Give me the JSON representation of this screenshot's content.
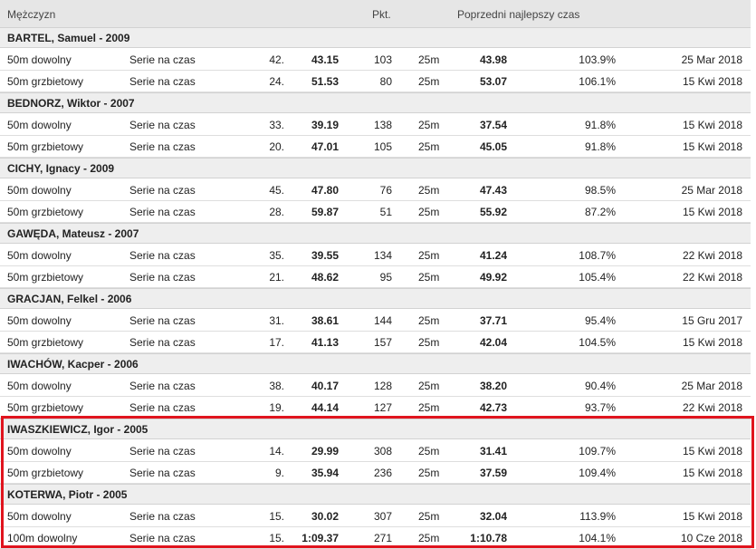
{
  "header": {
    "gender": "Mężczyzn",
    "points": "Pkt.",
    "previous_best": "Poprzedni najlepszy czas"
  },
  "athletes": [
    {
      "name": "BARTEL, Samuel - 2009",
      "results": [
        {
          "event": "50m dowolny",
          "round": "Serie na czas",
          "place": "42.",
          "time": "43.15",
          "points": "103",
          "course": "25m",
          "prev_time": "43.98",
          "percent": "103.9%",
          "date": "25 Mar 2018"
        },
        {
          "event": "50m grzbietowy",
          "round": "Serie na czas",
          "place": "24.",
          "time": "51.53",
          "points": "80",
          "course": "25m",
          "prev_time": "53.07",
          "percent": "106.1%",
          "date": "15 Kwi 2018"
        }
      ]
    },
    {
      "name": "BEDNORZ, Wiktor - 2007",
      "results": [
        {
          "event": "50m dowolny",
          "round": "Serie na czas",
          "place": "33.",
          "time": "39.19",
          "points": "138",
          "course": "25m",
          "prev_time": "37.54",
          "percent": "91.8%",
          "date": "15 Kwi 2018"
        },
        {
          "event": "50m grzbietowy",
          "round": "Serie na czas",
          "place": "20.",
          "time": "47.01",
          "points": "105",
          "course": "25m",
          "prev_time": "45.05",
          "percent": "91.8%",
          "date": "15 Kwi 2018"
        }
      ]
    },
    {
      "name": "CICHY, Ignacy - 2009",
      "results": [
        {
          "event": "50m dowolny",
          "round": "Serie na czas",
          "place": "45.",
          "time": "47.80",
          "points": "76",
          "course": "25m",
          "prev_time": "47.43",
          "percent": "98.5%",
          "date": "25 Mar 2018"
        },
        {
          "event": "50m grzbietowy",
          "round": "Serie na czas",
          "place": "28.",
          "time": "59.87",
          "points": "51",
          "course": "25m",
          "prev_time": "55.92",
          "percent": "87.2%",
          "date": "15 Kwi 2018"
        }
      ]
    },
    {
      "name": "GAWĘDA, Mateusz - 2007",
      "results": [
        {
          "event": "50m dowolny",
          "round": "Serie na czas",
          "place": "35.",
          "time": "39.55",
          "points": "134",
          "course": "25m",
          "prev_time": "41.24",
          "percent": "108.7%",
          "date": "22 Kwi 2018"
        },
        {
          "event": "50m grzbietowy",
          "round": "Serie na czas",
          "place": "21.",
          "time": "48.62",
          "points": "95",
          "course": "25m",
          "prev_time": "49.92",
          "percent": "105.4%",
          "date": "22 Kwi 2018"
        }
      ]
    },
    {
      "name": "GRACJAN, Felkel - 2006",
      "results": [
        {
          "event": "50m dowolny",
          "round": "Serie na czas",
          "place": "31.",
          "time": "38.61",
          "points": "144",
          "course": "25m",
          "prev_time": "37.71",
          "percent": "95.4%",
          "date": "15 Gru 2017"
        },
        {
          "event": "50m grzbietowy",
          "round": "Serie na czas",
          "place": "17.",
          "time": "41.13",
          "points": "157",
          "course": "25m",
          "prev_time": "42.04",
          "percent": "104.5%",
          "date": "15 Kwi 2018"
        }
      ]
    },
    {
      "name": "IWACHÓW, Kacper - 2006",
      "results": [
        {
          "event": "50m dowolny",
          "round": "Serie na czas",
          "place": "38.",
          "time": "40.17",
          "points": "128",
          "course": "25m",
          "prev_time": "38.20",
          "percent": "90.4%",
          "date": "25 Mar 2018"
        },
        {
          "event": "50m grzbietowy",
          "round": "Serie na czas",
          "place": "19.",
          "time": "44.14",
          "points": "127",
          "course": "25m",
          "prev_time": "42.73",
          "percent": "93.7%",
          "date": "22 Kwi 2018"
        }
      ]
    },
    {
      "name": "IWASZKIEWICZ, Igor - 2005",
      "results": [
        {
          "event": "50m dowolny",
          "round": "Serie na czas",
          "place": "14.",
          "time": "29.99",
          "points": "308",
          "course": "25m",
          "prev_time": "31.41",
          "percent": "109.7%",
          "date": "15 Kwi 2018"
        },
        {
          "event": "50m grzbietowy",
          "round": "Serie na czas",
          "place": "9.",
          "time": "35.94",
          "points": "236",
          "course": "25m",
          "prev_time": "37.59",
          "percent": "109.4%",
          "date": "15 Kwi 2018"
        }
      ]
    },
    {
      "name": "KOTERWA, Piotr - 2005",
      "results": [
        {
          "event": "50m dowolny",
          "round": "Serie na czas",
          "place": "15.",
          "time": "30.02",
          "points": "307",
          "course": "25m",
          "prev_time": "32.04",
          "percent": "113.9%",
          "date": "15 Kwi 2018"
        },
        {
          "event": "100m dowolny",
          "round": "Serie na czas",
          "place": "15.",
          "time": "1:09.37",
          "points": "271",
          "course": "25m",
          "prev_time": "1:10.78",
          "percent": "104.1%",
          "date": "10 Cze 2018"
        }
      ]
    }
  ],
  "colors": {
    "highlight": "#e0141e",
    "header_bg": "#e6e6e6",
    "athlete_bg": "#eeeeee"
  }
}
